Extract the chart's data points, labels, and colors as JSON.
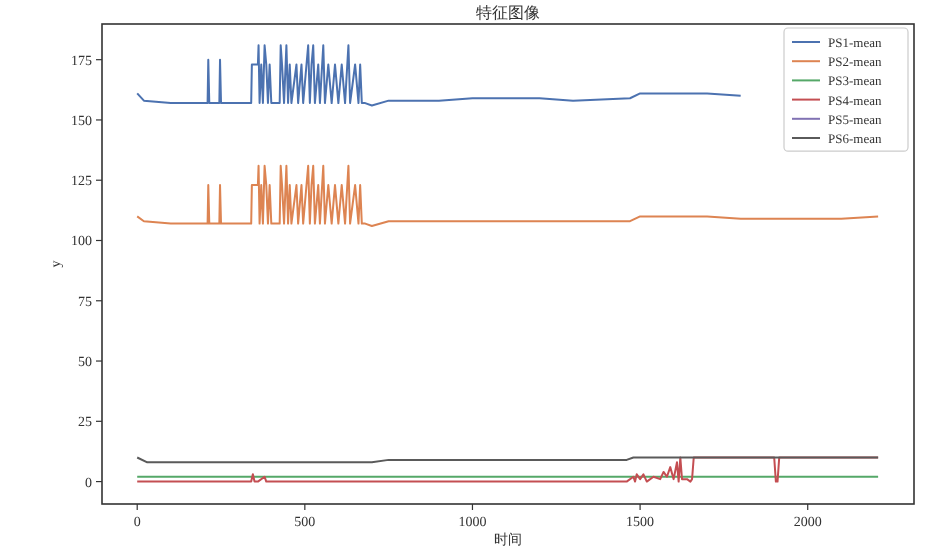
{
  "chart_data": {
    "type": "line",
    "title": "特征图像",
    "xlabel": "时间",
    "ylabel": "y",
    "xlim": [
      -105,
      2317
    ],
    "ylim": [
      -9.3,
      189.8
    ],
    "xticks": [
      0,
      500,
      1000,
      1500,
      2000
    ],
    "yticks": [
      0,
      25,
      50,
      75,
      100,
      125,
      150,
      175
    ],
    "grid": false,
    "legend": "top right",
    "marker": "none",
    "line_style": "solid",
    "x": [
      0,
      20,
      100,
      210,
      212,
      215,
      245,
      247,
      250,
      340,
      342,
      360,
      362,
      365,
      370,
      375,
      380,
      385,
      390,
      395,
      400,
      425,
      428,
      432,
      438,
      445,
      450,
      455,
      460,
      475,
      480,
      490,
      495,
      510,
      515,
      520,
      525,
      530,
      540,
      545,
      555,
      560,
      570,
      580,
      590,
      600,
      610,
      620,
      630,
      635,
      650,
      660,
      665,
      670,
      680,
      700,
      750,
      900,
      1000,
      1200,
      1300,
      1470,
      1500,
      1700,
      1800,
      2000,
      2100,
      2210
    ],
    "series": [
      {
        "name": "PS1-mean",
        "color": "#4c72b0",
        "values": [
          161,
          158,
          157,
          157,
          175,
          157,
          157,
          175,
          157,
          157,
          173,
          173,
          181,
          157,
          173,
          157,
          181,
          173,
          157,
          173,
          157,
          157,
          181,
          173,
          157,
          181,
          157,
          173,
          157,
          173,
          157,
          173,
          157,
          181,
          157,
          173,
          181,
          157,
          173,
          157,
          181,
          157,
          173,
          157,
          173,
          157,
          173,
          157,
          181,
          157,
          173,
          157,
          173,
          157,
          157,
          156,
          158,
          158,
          159,
          159,
          158,
          159,
          161,
          161,
          160,
          null,
          null,
          null
        ]
      },
      {
        "name": "PS2-mean",
        "color": "#dd8452",
        "values": [
          110,
          108,
          107,
          107,
          123,
          107,
          107,
          123,
          107,
          107,
          123,
          123,
          131,
          107,
          123,
          107,
          131,
          123,
          107,
          123,
          107,
          107,
          131,
          123,
          107,
          131,
          107,
          123,
          107,
          123,
          107,
          123,
          107,
          131,
          107,
          123,
          131,
          107,
          123,
          107,
          131,
          107,
          123,
          107,
          123,
          107,
          123,
          107,
          131,
          107,
          123,
          107,
          123,
          107,
          107,
          106,
          108,
          108,
          108,
          108,
          108,
          108,
          110,
          110,
          109,
          109,
          109,
          110
        ]
      },
      {
        "name": "PS3-mean",
        "color": "#55a868",
        "x": [
          0,
          700,
          1470,
          2210
        ],
        "values": [
          2,
          2,
          2,
          2
        ]
      },
      {
        "name": "PS4-mean",
        "color": "#c44e52",
        "x": [
          0,
          340,
          345,
          350,
          360,
          380,
          385,
          390,
          1460,
          1480,
          1485,
          1490,
          1500,
          1510,
          1520,
          1540,
          1560,
          1570,
          1580,
          1590,
          1600,
          1610,
          1615,
          1620,
          1625,
          1640,
          1650,
          1655,
          1660,
          1900,
          1905,
          1910,
          1915,
          1920,
          2210
        ],
        "values": [
          0,
          0,
          3,
          0,
          0,
          2,
          0,
          0,
          0,
          2,
          0,
          3,
          1,
          3,
          0,
          2,
          1,
          4,
          2,
          6,
          1,
          8,
          0,
          10,
          1,
          1,
          0,
          1,
          10,
          10,
          0,
          0,
          10,
          10,
          10
        ]
      },
      {
        "name": "PS5-mean",
        "color": "#8172b3",
        "values": [
          null,
          null,
          null,
          null,
          null,
          null,
          null,
          null,
          null,
          null,
          null,
          null,
          null,
          null,
          null,
          null,
          null,
          null,
          null,
          null,
          null,
          null,
          null,
          null,
          null,
          null,
          null,
          null,
          null,
          null,
          null,
          null,
          null,
          null,
          null,
          null,
          null,
          null,
          null,
          null,
          null,
          null,
          null,
          null,
          null,
          null,
          null,
          null,
          null,
          null,
          null,
          null,
          null,
          null,
          null,
          null,
          null,
          null,
          null,
          null,
          null,
          null,
          null,
          null,
          null,
          null,
          null,
          null
        ]
      },
      {
        "name": "PS6-mean",
        "color": "#5a5a5a",
        "x": [
          0,
          30,
          200,
          700,
          750,
          1460,
          1480,
          2210
        ],
        "values": [
          10,
          8,
          8,
          8,
          9,
          9,
          10,
          10
        ]
      }
    ]
  }
}
